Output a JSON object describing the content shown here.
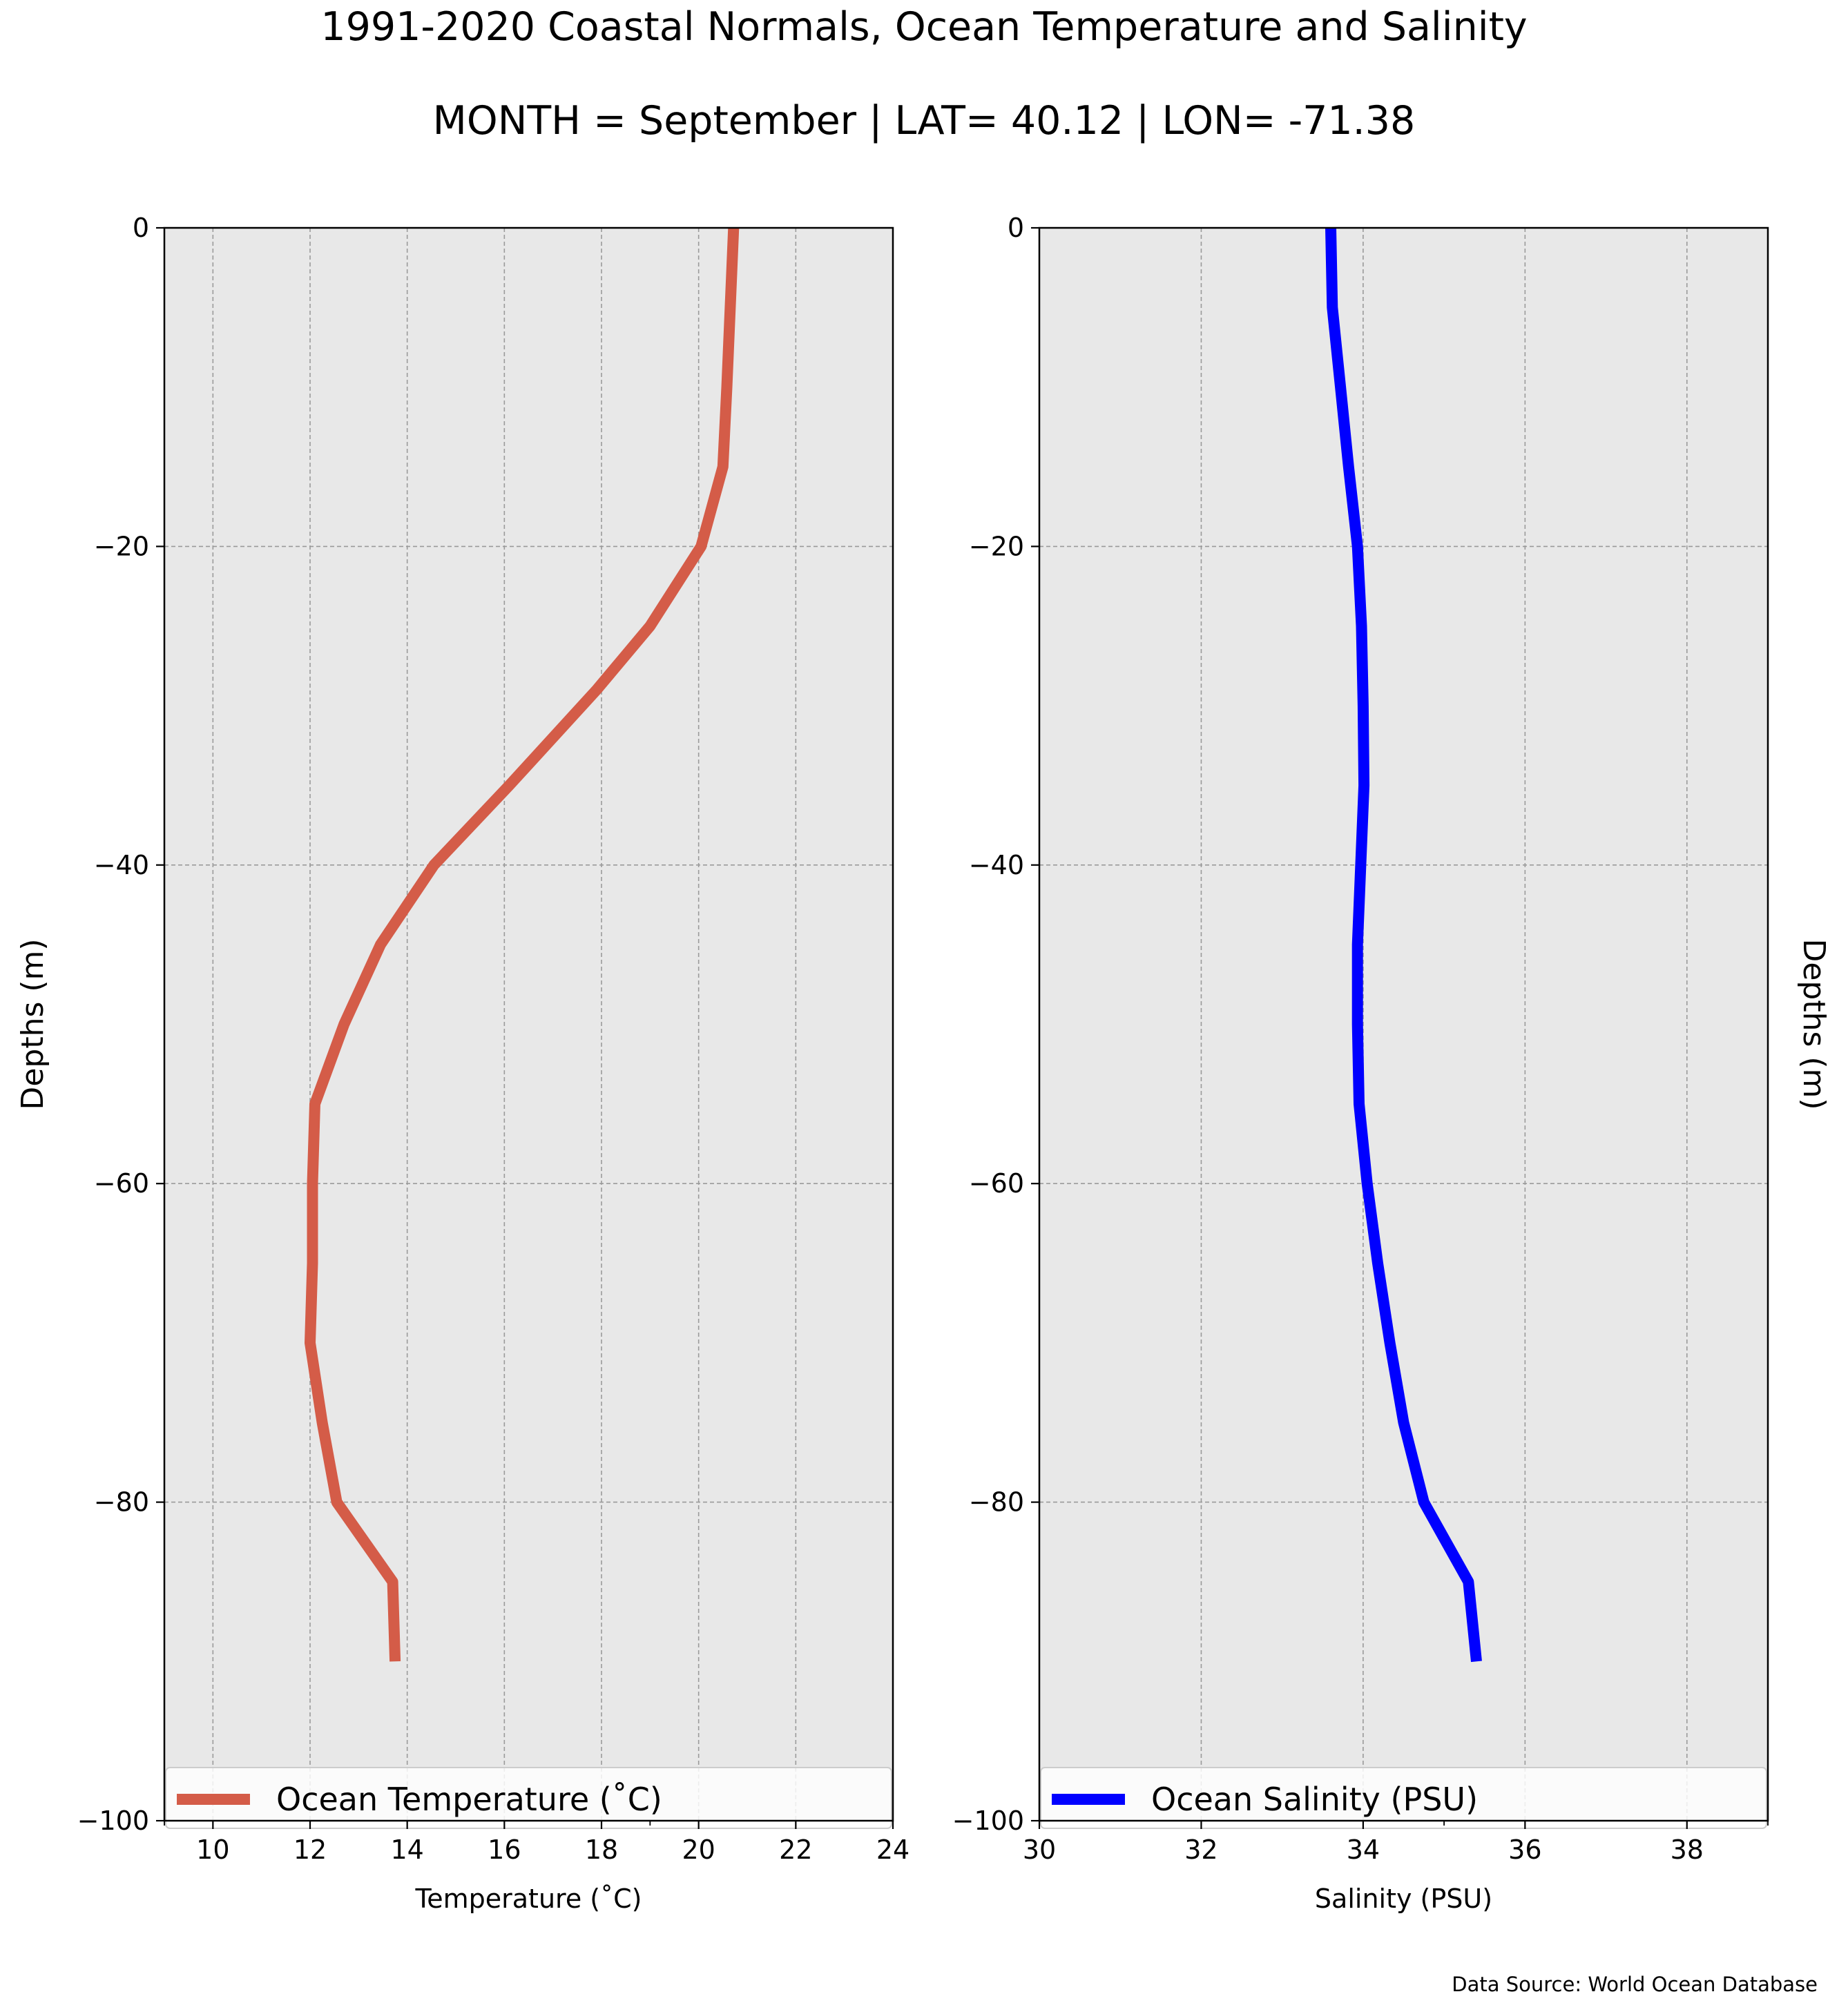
{
  "title": "1991-2020 Coastal Normals, Ocean Temperature and Salinity",
  "subtitle": "MONTH = September | LAT= 40.12 | LON= -71.38",
  "source": "Data Source: World Ocean Database",
  "chart_data": [
    {
      "type": "line",
      "xlabel": "Temperature ($^\\circ$C)",
      "xlabel_display": "Temperature (˚C)",
      "ylabel": "Depths (m)",
      "xlim": [
        9,
        24
      ],
      "ylim": [
        -100,
        0
      ],
      "xticks": [
        10,
        12,
        14,
        16,
        18,
        20,
        22,
        24
      ],
      "yticks": [
        0,
        -20,
        -40,
        -60,
        -80,
        -100
      ],
      "grid": true,
      "legend": "bottom-full-width",
      "color": "#d45c48",
      "series": [
        {
          "name": "Ocean Temperature (˚C)",
          "x": [
            20.72,
            20.65,
            20.58,
            20.5,
            20.05,
            19.0,
            17.9,
            16.1,
            14.55,
            13.45,
            12.7,
            12.1,
            12.05,
            12.05,
            12.05,
            12.0,
            12.25,
            12.55,
            13.7,
            13.75
          ],
          "y": [
            0,
            -5,
            -10,
            -15,
            -20,
            -25,
            -29,
            -35,
            -40,
            -45,
            -50,
            -55,
            -60,
            -65,
            -65,
            -70,
            -75,
            -80,
            -85,
            -90
          ]
        }
      ]
    },
    {
      "type": "line",
      "xlabel": "Salinity (PSU)",
      "ylabel": "Depths (m)",
      "xlim": [
        30,
        39
      ],
      "ylim": [
        -100,
        0
      ],
      "xticks": [
        30,
        32,
        34,
        36,
        38
      ],
      "yticks": [
        0,
        -20,
        -40,
        -60,
        -80,
        -100
      ],
      "grid": true,
      "legend": "bottom-full-width",
      "color": "#0000ff",
      "series": [
        {
          "name": "Ocean Salinity (PSU)",
          "x": [
            33.6,
            33.62,
            33.72,
            33.82,
            33.93,
            33.98,
            34.0,
            34.01,
            33.97,
            33.93,
            33.93,
            33.95,
            34.05,
            34.18,
            34.33,
            34.5,
            34.75,
            35.3,
            35.4
          ],
          "y": [
            0,
            -5,
            -10,
            -15,
            -20,
            -25,
            -30,
            -35,
            -40,
            -45,
            -50,
            -55,
            -60,
            -65,
            -70,
            -75,
            -80,
            -85,
            -90
          ]
        }
      ]
    }
  ]
}
